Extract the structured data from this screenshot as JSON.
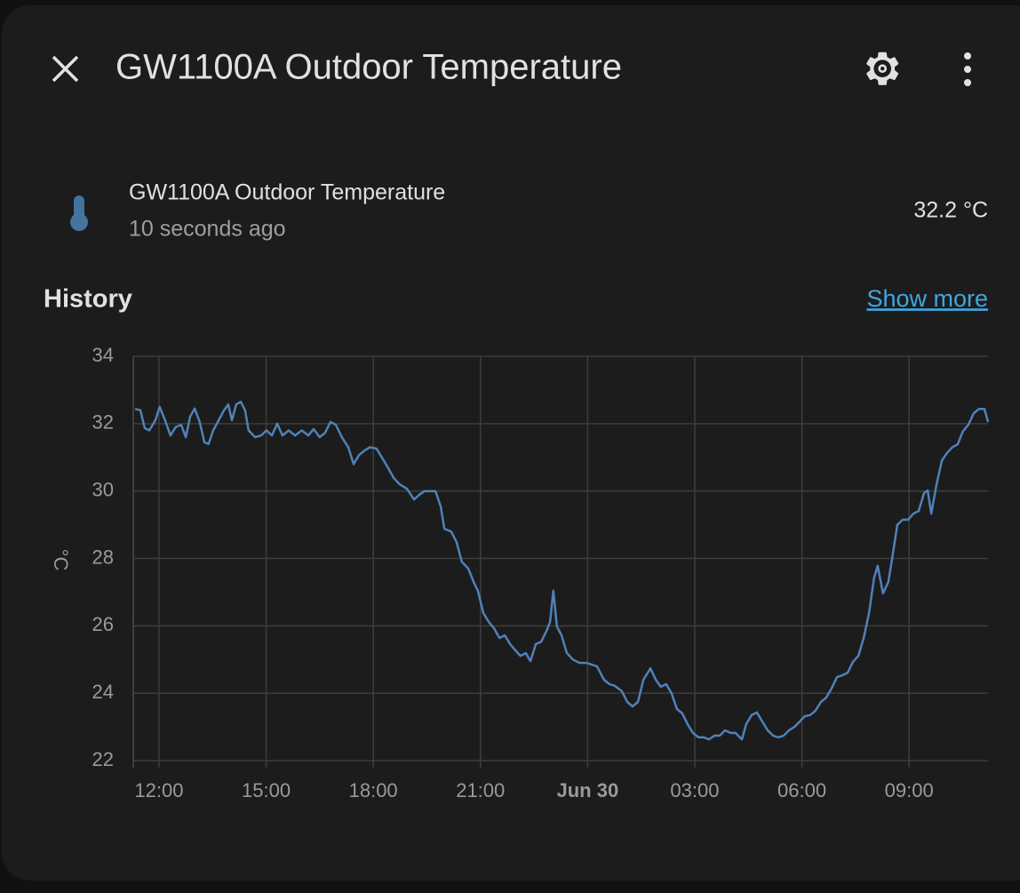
{
  "header": {
    "title": "GW1100A Outdoor Temperature"
  },
  "entity": {
    "name": "GW1100A Outdoor Temperature",
    "last_changed": "10 seconds ago",
    "state": "32.2 °C"
  },
  "history": {
    "title": "History",
    "link": "Show more"
  },
  "chart_data": {
    "type": "line",
    "y_label": "°C",
    "color": "#4f82b8",
    "grid": true,
    "xlim": [
      11.28,
      35.21
    ],
    "ylim": [
      22,
      34
    ],
    "yticks": [
      22,
      24,
      26,
      28,
      30,
      32,
      34
    ],
    "xticks": [
      {
        "value": 12,
        "label": "12:00"
      },
      {
        "value": 15,
        "label": "15:00"
      },
      {
        "value": 18,
        "label": "18:00"
      },
      {
        "value": 21,
        "label": "21:00"
      },
      {
        "value": 24,
        "label": "Jun 30"
      },
      {
        "value": 27,
        "label": "03:00"
      },
      {
        "value": 30,
        "label": "06:00"
      },
      {
        "value": 33,
        "label": "09:00"
      }
    ],
    "x": [
      11.33,
      11.48,
      11.6,
      11.73,
      11.9,
      12.02,
      12.17,
      12.32,
      12.47,
      12.62,
      12.75,
      12.87,
      13.0,
      13.14,
      13.27,
      13.39,
      13.52,
      13.67,
      13.82,
      13.94,
      14.04,
      14.16,
      14.29,
      14.41,
      14.51,
      14.69,
      14.86,
      15.01,
      15.16,
      15.31,
      15.46,
      15.63,
      15.81,
      16.0,
      16.18,
      16.33,
      16.5,
      16.65,
      16.8,
      16.95,
      17.12,
      17.3,
      17.45,
      17.6,
      17.75,
      17.9,
      18.09,
      18.24,
      18.42,
      18.57,
      18.74,
      18.94,
      19.14,
      19.29,
      19.44,
      19.74,
      19.89,
      19.99,
      20.18,
      20.33,
      20.48,
      20.66,
      20.81,
      20.93,
      21.08,
      21.23,
      21.38,
      21.53,
      21.68,
      21.83,
      21.98,
      22.12,
      22.27,
      22.4,
      22.55,
      22.7,
      22.85,
      22.95,
      23.04,
      23.14,
      23.27,
      23.42,
      23.59,
      23.77,
      23.97,
      24.11,
      24.26,
      24.46,
      24.61,
      24.76,
      24.96,
      25.11,
      25.26,
      25.41,
      25.56,
      25.76,
      25.91,
      26.05,
      26.2,
      26.35,
      26.5,
      26.65,
      26.8,
      26.95,
      27.1,
      27.25,
      27.4,
      27.55,
      27.7,
      27.85,
      28.0,
      28.14,
      28.32,
      28.44,
      28.59,
      28.74,
      28.89,
      29.04,
      29.19,
      29.34,
      29.49,
      29.64,
      29.79,
      29.94,
      30.08,
      30.23,
      30.38,
      30.53,
      30.68,
      30.83,
      30.98,
      31.13,
      31.28,
      31.43,
      31.58,
      31.73,
      31.88,
      32.02,
      32.12,
      32.27,
      32.42,
      32.52,
      32.67,
      32.82,
      32.97,
      33.12,
      33.27,
      33.42,
      33.52,
      33.62,
      33.77,
      33.92,
      34.06,
      34.21,
      34.36,
      34.51,
      34.66,
      34.81,
      34.96,
      35.11,
      35.21
    ],
    "values": [
      32.44,
      32.4,
      31.87,
      31.8,
      32.1,
      32.5,
      32.1,
      31.65,
      31.9,
      31.97,
      31.6,
      32.2,
      32.45,
      32.05,
      31.45,
      31.4,
      31.8,
      32.1,
      32.4,
      32.57,
      32.1,
      32.57,
      32.65,
      32.4,
      31.8,
      31.6,
      31.65,
      31.8,
      31.65,
      32.0,
      31.65,
      31.8,
      31.65,
      31.8,
      31.65,
      31.84,
      31.6,
      31.73,
      32.05,
      31.97,
      31.6,
      31.3,
      30.8,
      31.07,
      31.2,
      31.3,
      31.26,
      31.0,
      30.68,
      30.39,
      30.2,
      30.07,
      29.75,
      29.89,
      30.0,
      30.0,
      29.54,
      28.88,
      28.8,
      28.49,
      27.9,
      27.7,
      27.3,
      27.04,
      26.38,
      26.12,
      25.93,
      25.64,
      25.72,
      25.46,
      25.27,
      25.11,
      25.19,
      24.95,
      25.46,
      25.53,
      25.85,
      26.12,
      27.04,
      25.98,
      25.72,
      25.19,
      25.0,
      24.9,
      24.9,
      24.85,
      24.8,
      24.4,
      24.27,
      24.22,
      24.06,
      23.74,
      23.61,
      23.74,
      24.4,
      24.74,
      24.4,
      24.19,
      24.27,
      24.0,
      23.53,
      23.4,
      23.08,
      22.82,
      22.69,
      22.69,
      22.63,
      22.74,
      22.74,
      22.9,
      22.82,
      22.82,
      22.63,
      23.08,
      23.35,
      23.43,
      23.16,
      22.9,
      22.74,
      22.69,
      22.74,
      22.9,
      23.0,
      23.16,
      23.32,
      23.35,
      23.48,
      23.74,
      23.87,
      24.14,
      24.48,
      24.53,
      24.61,
      24.93,
      25.11,
      25.64,
      26.38,
      27.43,
      27.78,
      26.96,
      27.3,
      27.96,
      29.0,
      29.15,
      29.15,
      29.33,
      29.41,
      29.94,
      30.02,
      29.33,
      30.2,
      30.91,
      31.13,
      31.3,
      31.39,
      31.78,
      31.97,
      32.31,
      32.44,
      32.44,
      32.05
    ]
  }
}
